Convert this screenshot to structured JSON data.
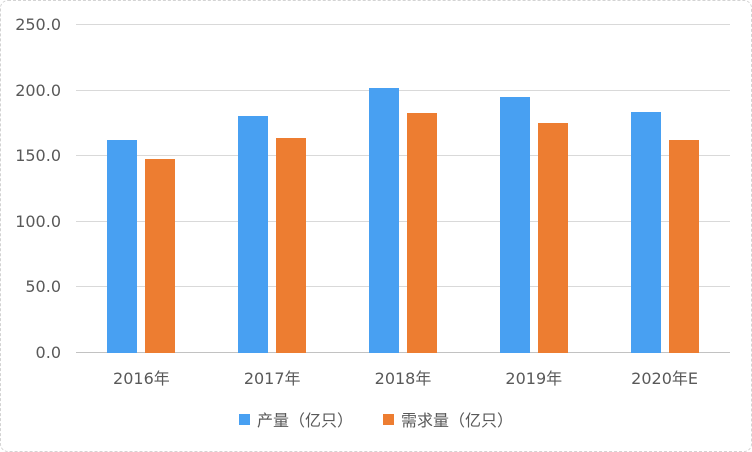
{
  "chart_data": {
    "type": "bar",
    "categories": [
      "2016年",
      "2017年",
      "2018年",
      "2019年",
      "2020年E"
    ],
    "series": [
      {
        "name": "产量（亿只）",
        "color": "#48A0F2",
        "values": [
          162,
          181,
          202,
          195,
          184
        ]
      },
      {
        "name": "需求量（亿只）",
        "color": "#ED7D31",
        "values": [
          148,
          164,
          183,
          175,
          162
        ]
      }
    ],
    "ylim": [
      0,
      250
    ],
    "ytick_step": 50,
    "ytick_labels": [
      "0.0",
      "50.0",
      "100.0",
      "150.0",
      "200.0",
      "250.0"
    ],
    "grid": true,
    "legend_position": "bottom"
  },
  "style": {
    "grid_color": "#d9d9d9",
    "axis_line_color": "#c2c2c2",
    "label_color": "#595959",
    "frame_border_color": "#d3d3d3",
    "background": "#ffffff"
  }
}
